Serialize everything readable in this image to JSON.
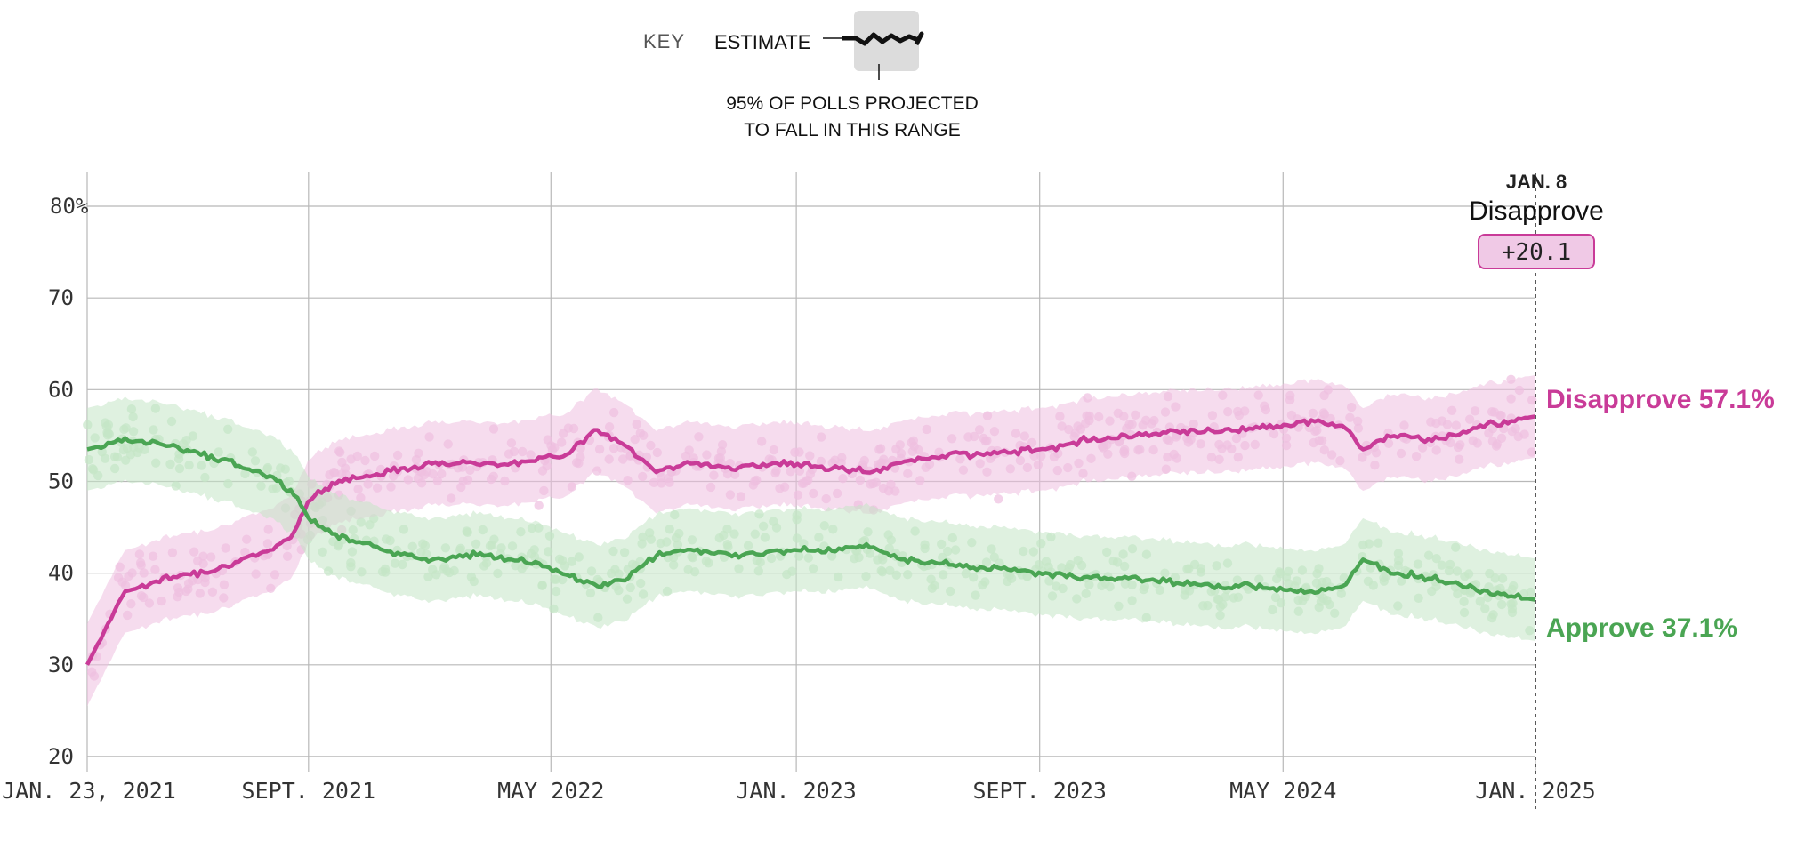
{
  "key": {
    "label": "KEY",
    "estimate_label": "ESTIMATE",
    "range_line1": "95% OF POLLS PROJECTED",
    "range_line2": "TO FALL IN THIS RANGE"
  },
  "callout": {
    "date": "JAN. 8",
    "leader": "Disapprove",
    "margin": "+20.1"
  },
  "end_labels": {
    "disapprove": "Disapprove 57.1%",
    "approve": "Approve 37.1%"
  },
  "colors": {
    "disapprove": "#c93b98",
    "disapprove_light": "#eebfe0",
    "approve": "#4aa553",
    "approve_light": "#c5e5c6",
    "grid": "#b8b8b8",
    "text": "#333333"
  },
  "chart_data": {
    "type": "line",
    "title": "",
    "xlabel": "",
    "ylabel": "",
    "ylim": [
      20,
      80
    ],
    "y_ticks": [
      "80%",
      "70",
      "60",
      "50",
      "40",
      "30",
      "20"
    ],
    "x_tick_labels": [
      "JAN. 23, 2021",
      "SEPT. 2021",
      "MAY 2022",
      "JAN. 2023",
      "SEPT. 2023",
      "MAY 2024",
      "JAN. 2025"
    ],
    "x_dates": [
      "2021-01-23",
      "2021-03-01",
      "2021-04-15",
      "2021-06-01",
      "2021-07-15",
      "2021-08-15",
      "2021-09-01",
      "2021-10-01",
      "2021-11-15",
      "2022-01-01",
      "2022-02-15",
      "2022-04-01",
      "2022-05-15",
      "2022-06-15",
      "2022-07-15",
      "2022-08-15",
      "2022-09-15",
      "2022-11-01",
      "2022-12-15",
      "2023-02-01",
      "2023-03-15",
      "2023-04-15",
      "2023-06-01",
      "2023-07-15",
      "2023-09-01",
      "2023-10-15",
      "2023-12-01",
      "2024-01-15",
      "2024-03-01",
      "2024-04-15",
      "2024-06-01",
      "2024-07-01",
      "2024-07-20",
      "2024-08-15",
      "2024-10-01",
      "2024-11-15",
      "2025-01-08"
    ],
    "series": [
      {
        "name": "Disapprove",
        "values": [
          30,
          38,
          39.5,
          40.5,
          42,
          44,
          48,
          50,
          51,
          52,
          52,
          52,
          53,
          55.5,
          54,
          51,
          52,
          51.5,
          52,
          51.5,
          51,
          52,
          53,
          53,
          53.5,
          54.5,
          55,
          55.5,
          55.5,
          56,
          56.5,
          56,
          53.5,
          55,
          54.5,
          56,
          57.1
        ]
      },
      {
        "name": "Approve",
        "values": [
          53.5,
          54.5,
          54,
          52.5,
          51,
          49,
          46,
          44,
          42.5,
          41.5,
          42,
          41.5,
          40,
          38.5,
          39.5,
          42,
          42.5,
          42,
          42.5,
          42.5,
          43,
          41.5,
          41,
          40.5,
          40,
          39.5,
          39.5,
          39,
          38.5,
          38.5,
          38,
          38.5,
          41.5,
          40,
          39.5,
          38,
          37.1
        ]
      }
    ]
  }
}
